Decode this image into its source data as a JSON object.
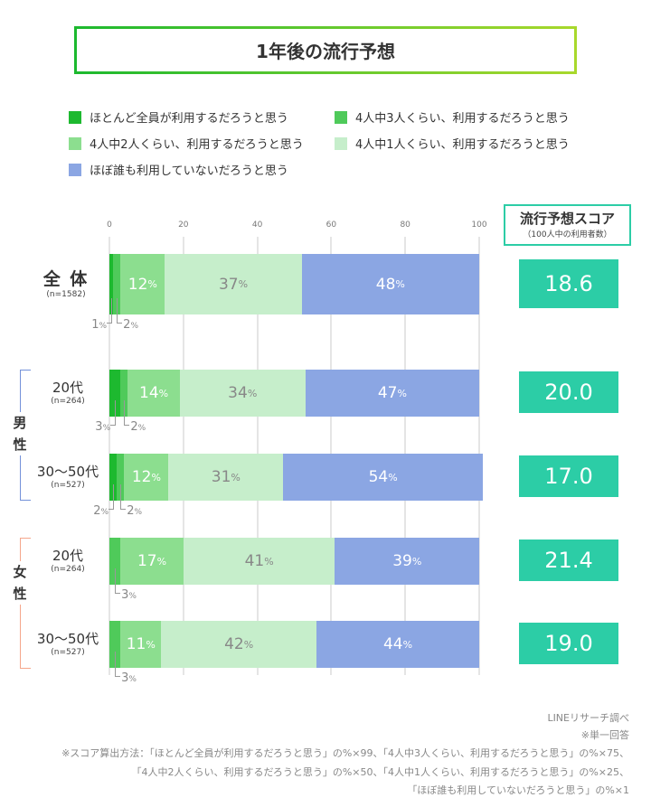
{
  "title": "1年後の流行予想",
  "colors": [
    "#1db92f",
    "#4fca5a",
    "#8cde8f",
    "#c6eecb",
    "#8ba6e3"
  ],
  "score_color": "#2ccda6",
  "score_header": {
    "title": "流行予想スコア",
    "subtitle": "（100人中の利用者数）"
  },
  "genders": [
    {
      "label": "男性",
      "chars": [
        "男",
        "性"
      ],
      "color": "#7391d9"
    },
    {
      "label": "女性",
      "chars": [
        "女",
        "性"
      ],
      "color": "#f5a68b"
    }
  ],
  "chart_data": {
    "type": "bar",
    "stacked": true,
    "orientation": "horizontal",
    "xlim": [
      0,
      100
    ],
    "xticks": [
      "0",
      "20",
      "40",
      "60",
      "80",
      "100"
    ],
    "grid": true,
    "legend_position": "top",
    "unit": "%",
    "series": [
      {
        "name": "ほとんど全員が利用するだろうと思う"
      },
      {
        "name": "4人中3人くらい、利用するだろうと思う"
      },
      {
        "name": "4人中2人くらい、利用するだろうと思う"
      },
      {
        "name": "4人中1人くらい、利用するだろうと思う"
      },
      {
        "name": "ほぼ誰も利用していないだろうと思う"
      }
    ],
    "rows": [
      {
        "label": "全 体",
        "n": "(n=1582)",
        "values": [
          1,
          2,
          12,
          37,
          48
        ],
        "score": "18.6"
      },
      {
        "label": "20代",
        "n": "(n=264)",
        "gender": 0,
        "values": [
          3,
          2,
          14,
          34,
          47
        ],
        "score": "20.0"
      },
      {
        "label": "30〜50代",
        "n": "(n=527)",
        "gender": 0,
        "values": [
          2,
          2,
          12,
          31,
          54
        ],
        "score": "17.0"
      },
      {
        "label": "20代",
        "n": "(n=264)",
        "gender": 1,
        "values": [
          0,
          3,
          17,
          41,
          39
        ],
        "score": "21.4"
      },
      {
        "label": "30〜50代",
        "n": "(n=527)",
        "gender": 1,
        "values": [
          0,
          3,
          11,
          42,
          44
        ],
        "score": "19.0"
      }
    ]
  },
  "footer": [
    "LINEリサーチ調べ",
    "※単一回答",
    "※スコア算出方法：「ほとんど全員が利用するだろうと思う」の%×99、「4人中3人くらい、利用するだろうと思う」の%×75、",
    "「4人中2人くらい、利用するだろうと思う」の%×50、「4人中1人くらい、利用するだろうと思う」の%×25、",
    "「ほぼ誰も利用していないだろうと思う」の%×1"
  ]
}
